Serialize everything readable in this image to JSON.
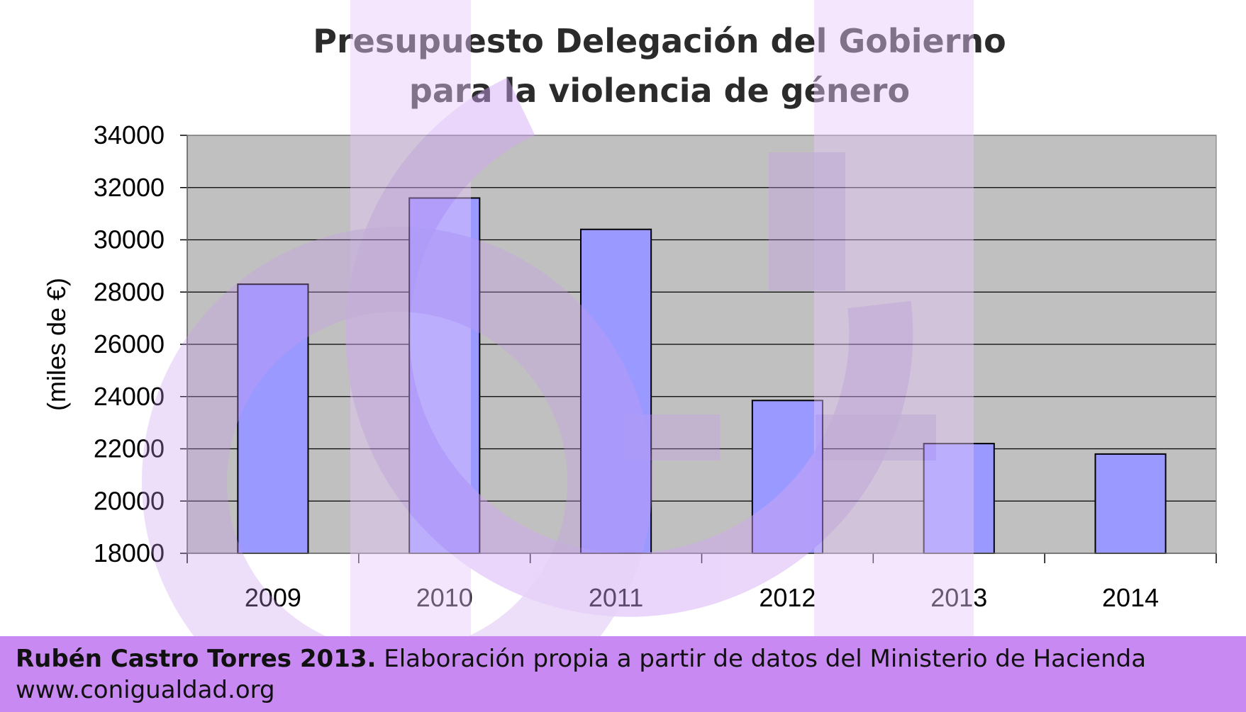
{
  "chart_data": {
    "type": "bar",
    "title_lines": [
      "Presupuesto Delegación del Gobierno",
      "para la violencia de género"
    ],
    "ylabel": "(miles de €)",
    "xlabel": "",
    "categories": [
      "2009",
      "2010",
      "2011",
      "2012",
      "2013",
      "2014"
    ],
    "values": [
      28300,
      31600,
      30400,
      23850,
      22200,
      21800
    ],
    "ylim": [
      18000,
      34000
    ],
    "yticks": [
      "18000",
      "20000",
      "22000",
      "24000",
      "26000",
      "28000",
      "30000",
      "32000",
      "34000"
    ],
    "grid": true,
    "legend": "none",
    "colors": {
      "bar": "#9999ff",
      "plot_background": "#c0c0c0",
      "gridline": "#000000"
    }
  },
  "footer": {
    "author": "Rubén Castro Torres 2013.",
    "source": " Elaboración propia a partir de datos del Ministerio de Hacienda",
    "website": "www.conigualdad.org"
  },
  "watermark": {
    "icon": "equality-gender-symbol-icon",
    "color": "#d8b4f8"
  }
}
